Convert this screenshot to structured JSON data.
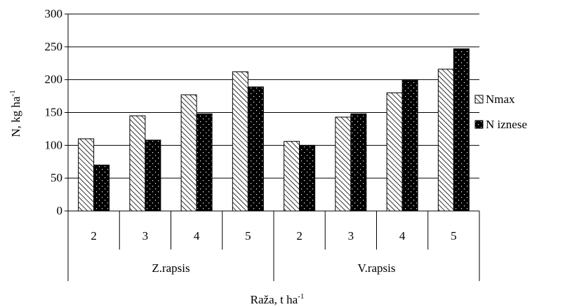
{
  "chart_data": {
    "type": "bar",
    "title": "",
    "xlabel": "Raža, t ha",
    "xlabel_sup": "-1",
    "ylabel": "N, kg ha",
    "ylabel_sup": "-1",
    "ylim": [
      0,
      300
    ],
    "yticks": [
      "0",
      "50",
      "100",
      "150",
      "200",
      "250",
      "300"
    ],
    "grid": true,
    "legend_position": "right",
    "groups": [
      {
        "name": "Z.rapsis",
        "categories": [
          "2",
          "3",
          "4",
          "5"
        ]
      },
      {
        "name": "V.rapsis",
        "categories": [
          "2",
          "3",
          "4",
          "5"
        ]
      }
    ],
    "series": [
      {
        "name": "Nmax",
        "pattern": "diagonal-hatch",
        "color": "#ffffff",
        "values": [
          110,
          145,
          177,
          212,
          106,
          143,
          180,
          216
        ]
      },
      {
        "name": "N iznese",
        "pattern": "dotted-black",
        "color": "#000000",
        "values": [
          70,
          108,
          148,
          189,
          100,
          148,
          199,
          247
        ]
      }
    ]
  }
}
